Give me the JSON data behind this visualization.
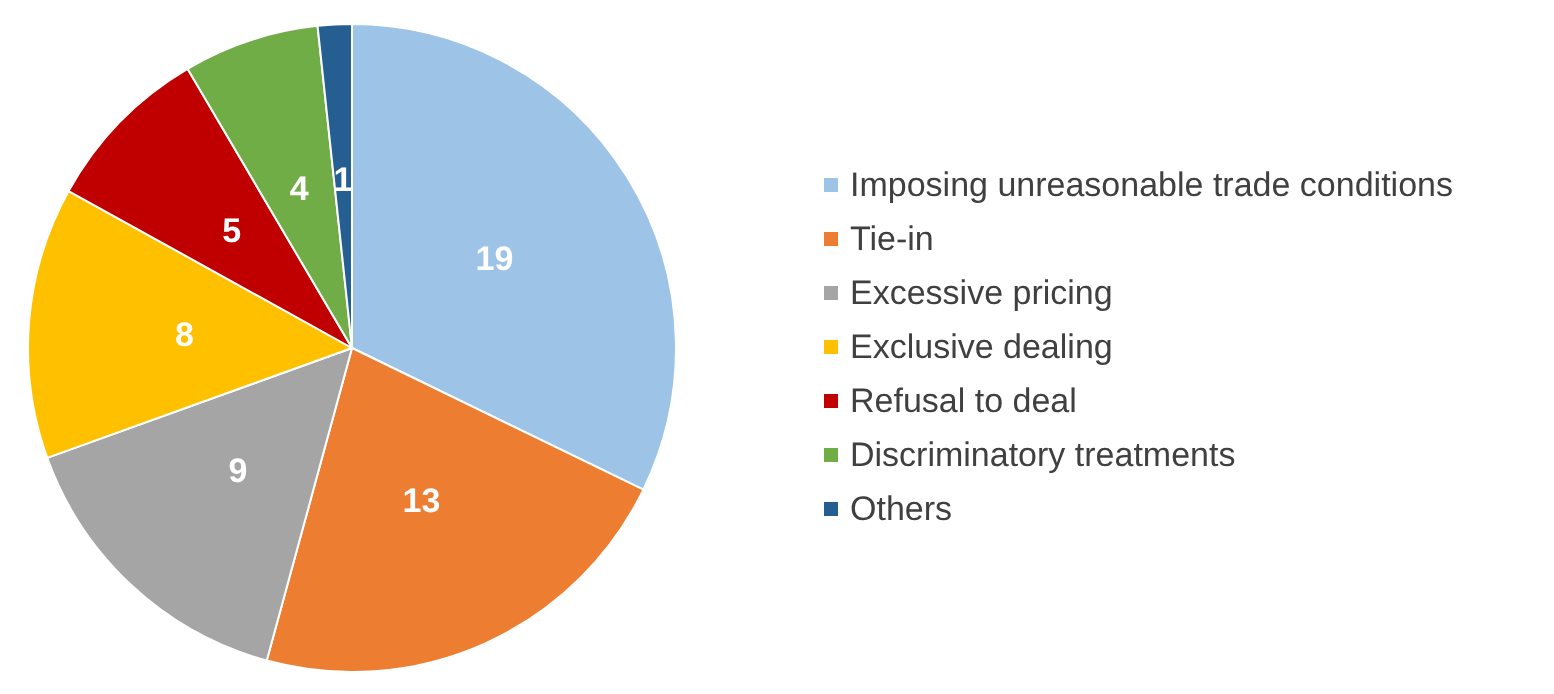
{
  "chart_data": {
    "type": "pie",
    "categories": [
      "Imposing unreasonable trade conditions",
      "Tie-in",
      "Excessive pricing",
      "Exclusive dealing",
      "Refusal to deal",
      "Discriminatory treatments",
      "Others"
    ],
    "values": [
      19,
      13,
      9,
      8,
      5,
      4,
      1
    ],
    "colors": [
      "#9dc3e6",
      "#ed7d31",
      "#a5a5a5",
      "#ffc000",
      "#c00000",
      "#70ad47",
      "#255e91"
    ],
    "data_labels": true,
    "legend": "right"
  }
}
